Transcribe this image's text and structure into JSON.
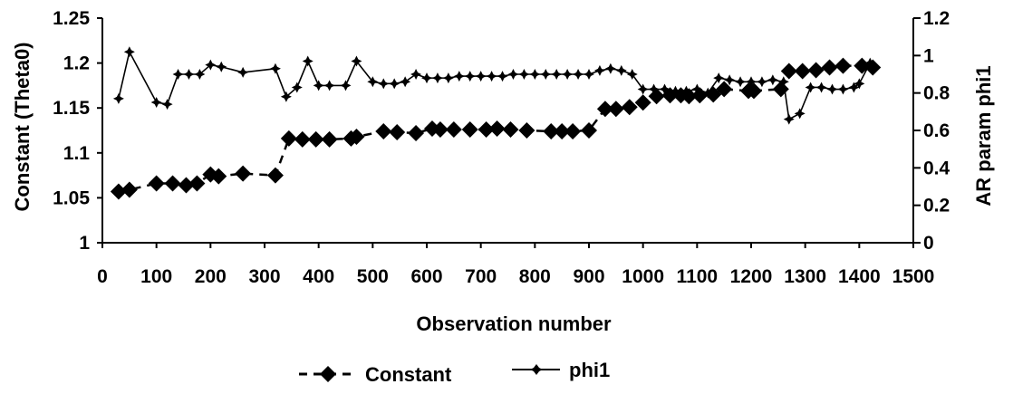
{
  "chart_data": {
    "type": "line",
    "title": "",
    "xlabel": "Observation number",
    "ylabel_left": "Constant (Theta0)",
    "ylabel_right": "AR param phi1",
    "xlim": [
      0,
      1500
    ],
    "ylim_left": [
      1,
      1.25
    ],
    "ylim_right": [
      0,
      1.2
    ],
    "x_ticks": [
      "0",
      "100",
      "200",
      "300",
      "400",
      "500",
      "600",
      "700",
      "800",
      "900",
      "1000",
      "1100",
      "1200",
      "1300",
      "1400",
      "1500"
    ],
    "y_left_ticks": [
      "1",
      "1.05",
      "1.1",
      "1.15",
      "1.2",
      "1.25"
    ],
    "y_right_ticks": [
      "0",
      "0.2",
      "0.4",
      "0.6",
      "0.8",
      "1",
      "1.2"
    ],
    "grid": false,
    "legend_position": "bottom",
    "series": [
      {
        "name": "Constant",
        "axis": "left",
        "style": "dashed-diamond",
        "color": "#000000",
        "x": [
          30,
          50,
          100,
          130,
          155,
          175,
          200,
          215,
          260,
          320,
          345,
          370,
          395,
          420,
          460,
          470,
          520,
          545,
          580,
          610,
          625,
          650,
          680,
          710,
          730,
          755,
          785,
          830,
          850,
          870,
          900,
          930,
          950,
          975,
          1000,
          1025,
          1050,
          1070,
          1085,
          1105,
          1130,
          1150,
          1195,
          1205,
          1255,
          1270,
          1295,
          1320,
          1345,
          1370,
          1405,
          1425
        ],
        "y": [
          1.057,
          1.059,
          1.066,
          1.066,
          1.064,
          1.066,
          1.076,
          1.074,
          1.077,
          1.075,
          1.116,
          1.115,
          1.115,
          1.115,
          1.116,
          1.118,
          1.124,
          1.123,
          1.122,
          1.127,
          1.126,
          1.126,
          1.126,
          1.126,
          1.127,
          1.126,
          1.125,
          1.124,
          1.124,
          1.124,
          1.125,
          1.149,
          1.149,
          1.151,
          1.156,
          1.163,
          1.164,
          1.164,
          1.163,
          1.164,
          1.165,
          1.171,
          1.169,
          1.169,
          1.171,
          1.191,
          1.191,
          1.192,
          1.195,
          1.197,
          1.197,
          1.195
        ]
      },
      {
        "name": "phi1",
        "axis": "right",
        "style": "solid-star",
        "color": "#000000",
        "x": [
          30,
          50,
          100,
          120,
          140,
          160,
          180,
          200,
          220,
          260,
          320,
          340,
          360,
          380,
          400,
          420,
          450,
          470,
          500,
          520,
          540,
          560,
          580,
          600,
          620,
          640,
          660,
          680,
          700,
          720,
          740,
          760,
          780,
          800,
          820,
          840,
          860,
          880,
          900,
          920,
          940,
          960,
          980,
          1000,
          1020,
          1040,
          1060,
          1080,
          1100,
          1120,
          1140,
          1160,
          1180,
          1200,
          1220,
          1240,
          1260,
          1270,
          1290,
          1310,
          1330,
          1350,
          1370,
          1390,
          1400,
          1420
        ],
        "y": [
          0.77,
          1.02,
          0.75,
          0.74,
          0.9,
          0.9,
          0.9,
          0.95,
          0.94,
          0.91,
          0.93,
          0.78,
          0.83,
          0.97,
          0.84,
          0.84,
          0.84,
          0.97,
          0.86,
          0.85,
          0.85,
          0.86,
          0.9,
          0.88,
          0.88,
          0.88,
          0.89,
          0.89,
          0.89,
          0.89,
          0.89,
          0.9,
          0.9,
          0.9,
          0.9,
          0.9,
          0.9,
          0.9,
          0.9,
          0.92,
          0.93,
          0.92,
          0.9,
          0.82,
          0.82,
          0.82,
          0.81,
          0.81,
          0.82,
          0.8,
          0.88,
          0.87,
          0.86,
          0.86,
          0.86,
          0.87,
          0.86,
          0.66,
          0.69,
          0.83,
          0.83,
          0.82,
          0.82,
          0.83,
          0.85,
          0.96
        ]
      }
    ]
  }
}
